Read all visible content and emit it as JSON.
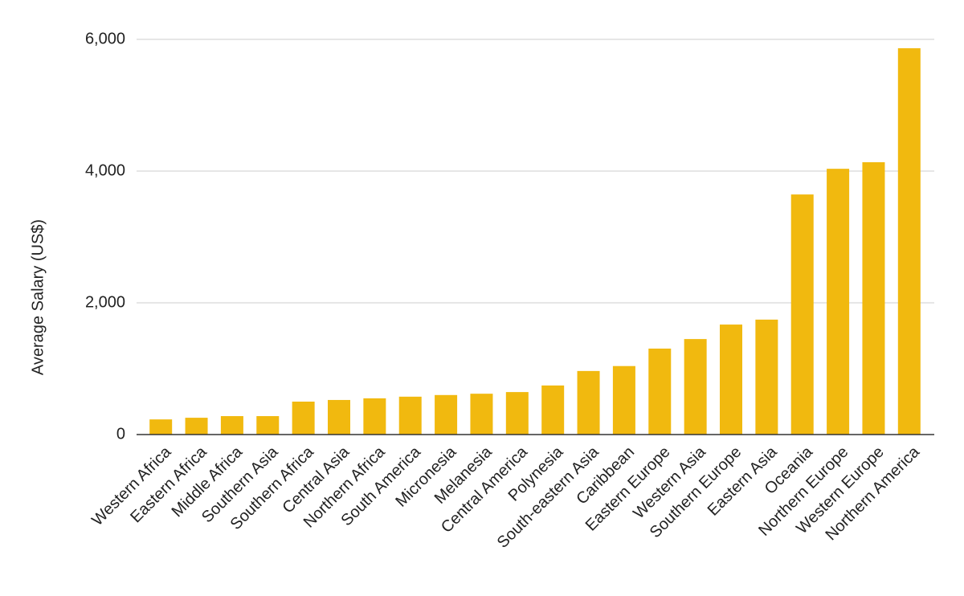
{
  "chart_data": {
    "type": "bar",
    "y_label": "Average Salary (US$)",
    "categories": [
      "Western Africa",
      "Eastern Africa",
      "Middle Africa",
      "Southern Asia",
      "Southern Africa",
      "Central Asia",
      "Northern Africa",
      "South America",
      "Micronesia",
      "Melanesia",
      "Central America",
      "Polynesia",
      "South-eastern Asia",
      "Caribbean",
      "Eastern Europe",
      "Western Asia",
      "Southern Europe",
      "Eastern Asia",
      "Oceania",
      "Northern Europe",
      "Western Europe",
      "Northern America"
    ],
    "values": [
      230,
      255,
      280,
      280,
      500,
      525,
      550,
      575,
      600,
      620,
      645,
      745,
      965,
      1040,
      1305,
      1450,
      1670,
      1745,
      3645,
      4035,
      4135,
      5865
    ],
    "color": "#f1b90f",
    "ylim": [
      0,
      6000
    ],
    "yticks": [
      0,
      {
        "value": 2000,
        "label": "2,000"
      },
      {
        "value": 4000,
        "label": "4,000"
      },
      {
        "value": 6000,
        "label": "6,000"
      }
    ],
    "grid": true
  }
}
